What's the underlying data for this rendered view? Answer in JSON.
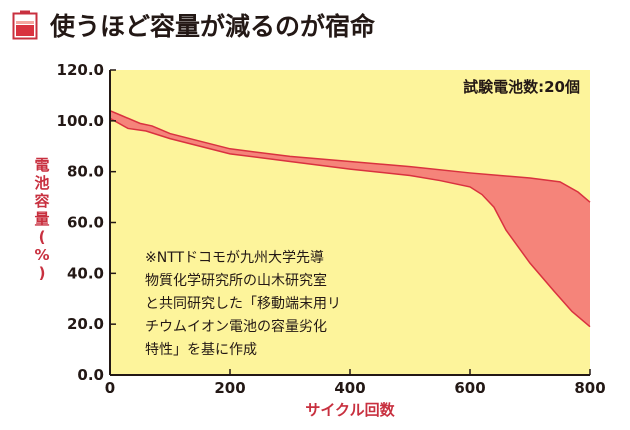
{
  "header": {
    "title": "使うほど容量が減るのが宿命",
    "icon": "battery-icon"
  },
  "colors": {
    "band_fill": "#f5847a",
    "band_edge": "#d9323f",
    "plot_bg": "#fdf49b",
    "accent_red": "#c8303f",
    "axis": "#231815"
  },
  "chart_data": {
    "type": "area",
    "title": "使うほど容量が減るのが宿命",
    "xlabel": "サイクル回数",
    "ylabel": "電池容量(%)",
    "xlim": [
      0,
      800
    ],
    "ylim": [
      0,
      120
    ],
    "x_ticks": [
      "0",
      "200",
      "400",
      "600",
      "800"
    ],
    "y_ticks": [
      "0.0",
      "20.0",
      "40.0",
      "60.0",
      "80.0",
      "100.0",
      "120.0"
    ],
    "grid": false,
    "legend": "none",
    "annotation_top_right": "試験電池数:20個",
    "note_lines": [
      "※NTTドコモが九州大学先導",
      "物質化学研究所の山木研究室",
      "と共同研究した「移動端末用リ",
      "チウムイオン電池の容量劣化",
      "特性」を基に作成"
    ],
    "series": [
      {
        "name": "upper",
        "x": [
          0,
          20,
          50,
          70,
          100,
          150,
          200,
          300,
          400,
          500,
          600,
          650,
          700,
          750,
          780,
          800
        ],
        "values": [
          104,
          102,
          99,
          98,
          95,
          92,
          89,
          86,
          84,
          82,
          79.5,
          78.5,
          77.5,
          76,
          72,
          68
        ]
      },
      {
        "name": "lower",
        "x": [
          0,
          30,
          60,
          100,
          150,
          200,
          300,
          400,
          500,
          550,
          600,
          620,
          640,
          660,
          700,
          740,
          770,
          800
        ],
        "values": [
          101,
          97,
          96,
          93,
          90,
          87,
          84,
          81,
          78.5,
          76.5,
          74,
          71,
          66,
          57,
          44,
          33,
          25,
          19
        ]
      }
    ]
  }
}
